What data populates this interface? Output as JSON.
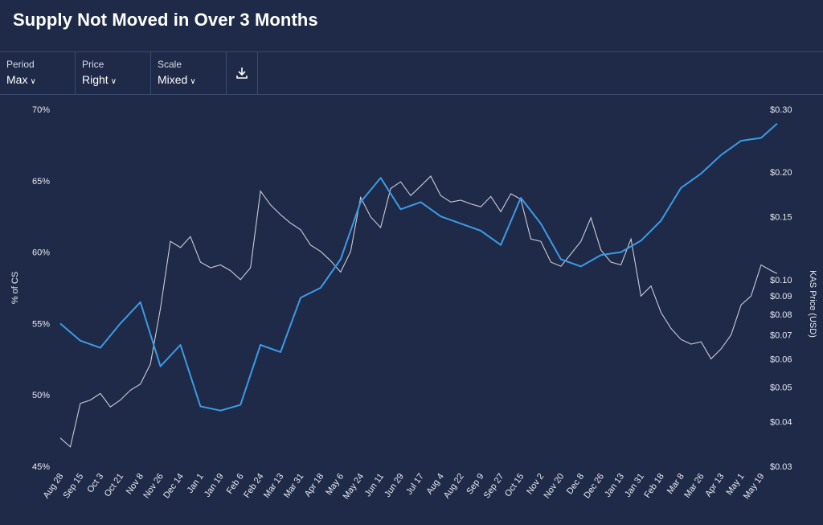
{
  "title": "Supply Not Moved in Over 3 Months",
  "toolbar": {
    "period": {
      "label": "Period",
      "value": "Max"
    },
    "price": {
      "label": "Price",
      "value": "Right"
    },
    "scale": {
      "label": "Scale",
      "value": "Mixed"
    },
    "download_icon": "download-icon"
  },
  "colors": {
    "background": "#1f2a48",
    "supply_line": "#3b9be6",
    "price_line": "#c8ccd6",
    "divider": "#3a4a70"
  },
  "chart_data": {
    "type": "line",
    "title": "Supply Not Moved in Over 3 Months",
    "ylabel_left": "% of CS",
    "ylabel_right": "KAS Price (USD)",
    "y_left_range": [
      45,
      70
    ],
    "y_left_ticks": [
      "70%",
      "65%",
      "60%",
      "55%",
      "50%",
      "45%"
    ],
    "y_left_tick_values": [
      70,
      65,
      60,
      55,
      50,
      45
    ],
    "y_right_scale": "log",
    "y_right_range": [
      0.03,
      0.3
    ],
    "y_right_ticks": [
      "$0.30",
      "$0.20",
      "$0.15",
      "$0.10",
      "$0.09",
      "$0.08",
      "$0.07",
      "$0.06",
      "$0.05",
      "$0.04",
      "$0.03"
    ],
    "y_right_tick_values": [
      0.3,
      0.2,
      0.15,
      0.1,
      0.09,
      0.08,
      0.07,
      0.06,
      0.05,
      0.04,
      0.03
    ],
    "x_ticks": [
      "Aug 28",
      "Sep 15",
      "Oct 3",
      "Oct 21",
      "Nov 8",
      "Nov 26",
      "Dec 14",
      "Jan 1",
      "Jan 19",
      "Feb 6",
      "Feb 24",
      "Mar 13",
      "Mar 31",
      "Apr 18",
      "May 6",
      "May 24",
      "Jun 11",
      "Jun 29",
      "Jul 17",
      "Aug 4",
      "Aug 22",
      "Sep 9",
      "Sep 27",
      "Oct 15",
      "Nov 2",
      "Nov 20",
      "Dec 8",
      "Dec 26",
      "Jan 13",
      "Jan 31",
      "Feb 18",
      "Mar 8",
      "Mar 26",
      "Apr 13",
      "May 1",
      "May 19"
    ],
    "grid": false,
    "series": [
      {
        "name": "% of CS",
        "axis": "left",
        "x_index": [
          0,
          1,
          2,
          3,
          4,
          5,
          6,
          7,
          8,
          9,
          10,
          11,
          12,
          13,
          14,
          15,
          16,
          17,
          18,
          19,
          20,
          21,
          22,
          23,
          24,
          25,
          26,
          27,
          28,
          29,
          30,
          31,
          32,
          33,
          34,
          35,
          35.8
        ],
        "values": [
          55.0,
          53.8,
          53.3,
          55.0,
          56.5,
          52.0,
          53.5,
          49.2,
          48.9,
          49.3,
          53.5,
          53.0,
          56.8,
          57.5,
          59.5,
          63.5,
          65.2,
          63.0,
          63.5,
          62.5,
          62.0,
          61.5,
          60.5,
          63.8,
          62.0,
          59.5,
          59.0,
          59.8,
          60.0,
          60.8,
          62.2,
          64.5,
          65.5,
          66.8,
          67.8,
          68.0,
          69.0
        ]
      },
      {
        "name": "KAS Price",
        "axis": "right",
        "x_index": [
          0,
          0.5,
          1,
          1.5,
          2,
          2.5,
          3,
          3.5,
          4,
          4.5,
          5,
          5.5,
          6,
          6.5,
          7,
          7.5,
          8,
          8.5,
          9,
          9.5,
          10,
          10.5,
          11,
          11.5,
          12,
          12.5,
          13,
          13.5,
          14,
          14.5,
          15,
          15.5,
          16,
          16.5,
          17,
          17.5,
          18,
          18.5,
          19,
          19.5,
          20,
          20.5,
          21,
          21.5,
          22,
          22.5,
          23,
          23.5,
          24,
          24.5,
          25,
          25.5,
          26,
          26.5,
          27,
          27.5,
          28,
          28.5,
          29,
          29.5,
          30,
          30.5,
          31,
          31.5,
          32,
          32.5,
          33,
          33.5,
          34,
          34.5,
          35,
          35.5,
          35.8
        ],
        "values": [
          0.036,
          0.034,
          0.045,
          0.046,
          0.048,
          0.044,
          0.046,
          0.049,
          0.051,
          0.058,
          0.083,
          0.128,
          0.123,
          0.132,
          0.112,
          0.108,
          0.11,
          0.106,
          0.1,
          0.108,
          0.177,
          0.162,
          0.152,
          0.144,
          0.138,
          0.125,
          0.12,
          0.113,
          0.105,
          0.12,
          0.17,
          0.15,
          0.14,
          0.18,
          0.188,
          0.172,
          0.183,
          0.195,
          0.172,
          0.165,
          0.167,
          0.163,
          0.16,
          0.171,
          0.155,
          0.174,
          0.168,
          0.13,
          0.128,
          0.112,
          0.109,
          0.118,
          0.128,
          0.149,
          0.121,
          0.112,
          0.11,
          0.13,
          0.09,
          0.096,
          0.081,
          0.073,
          0.068,
          0.066,
          0.067,
          0.06,
          0.064,
          0.07,
          0.085,
          0.09,
          0.11,
          0.106,
          0.104
        ]
      }
    ]
  }
}
